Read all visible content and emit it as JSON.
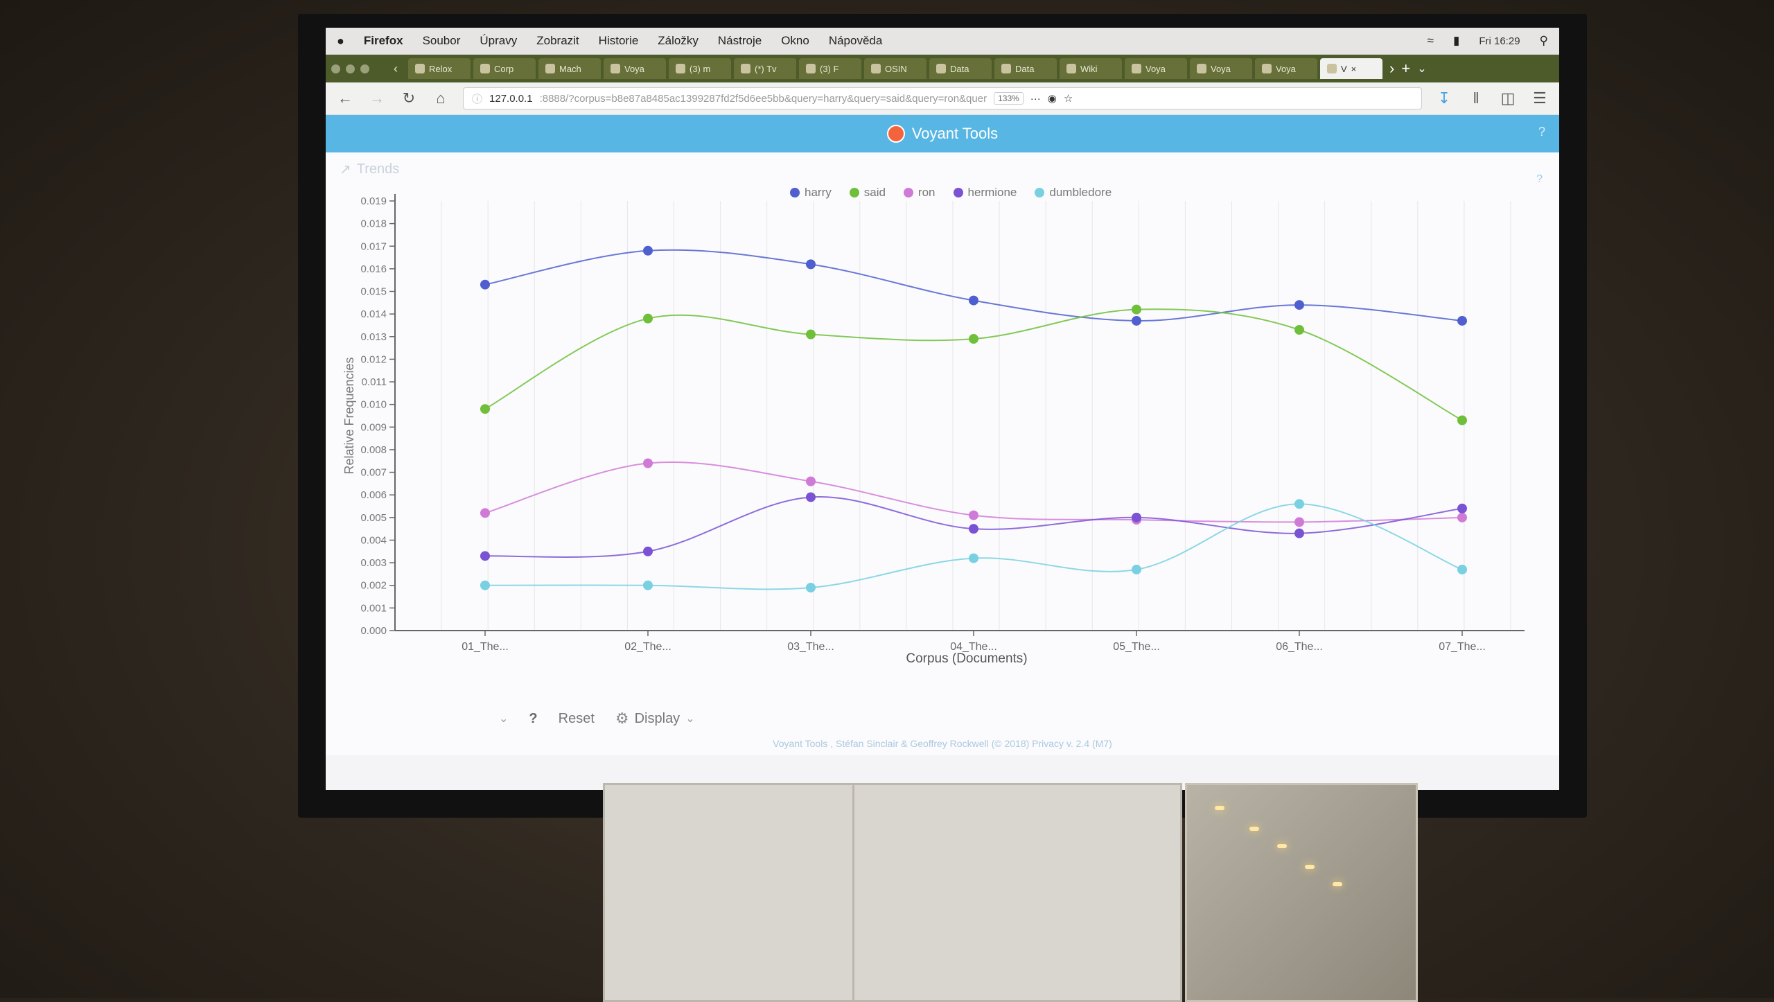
{
  "menubar": {
    "apple": "",
    "app_name": "Firefox",
    "items": [
      "Soubor",
      "Úpravy",
      "Zobrazit",
      "Historie",
      "Záložky",
      "Nástroje",
      "Okno",
      "Nápověda"
    ],
    "clock": "Fri 16:29"
  },
  "tabs": [
    {
      "label": "Relox",
      "active": false
    },
    {
      "label": "Corp",
      "active": false
    },
    {
      "label": "Mach",
      "active": false
    },
    {
      "label": "Voya",
      "active": false
    },
    {
      "label": "(3) m",
      "active": false
    },
    {
      "label": "(*) Tv",
      "active": false
    },
    {
      "label": "(3) F",
      "active": false
    },
    {
      "label": "OSIN",
      "active": false
    },
    {
      "label": "Data",
      "active": false
    },
    {
      "label": "Data",
      "active": false
    },
    {
      "label": "Wiki",
      "active": false
    },
    {
      "label": "Voya",
      "active": false
    },
    {
      "label": "Voya",
      "active": false
    },
    {
      "label": "Voya",
      "active": false
    },
    {
      "label": "V",
      "active": true
    }
  ],
  "navbar": {
    "url_host": "127.0.0.1",
    "url_rest": ":8888/?corpus=b8e87a8485ac1399287fd2f5d6ee5bb&query=harry&query=said&query=ron&quer",
    "zoom": "133%",
    "more": "···"
  },
  "app": {
    "title": "Voyant Tools",
    "help": "?"
  },
  "panel": {
    "title": "Trends",
    "help": "?"
  },
  "toolbar": {
    "help": "?",
    "reset": "Reset",
    "display": "Display"
  },
  "credits": "Voyant Tools , Stéfan Sinclair & Geoffrey Rockwell (© 2018) Privacy v. 2.4 (M7)",
  "chart_data": {
    "type": "line",
    "xlabel": "Corpus (Documents)",
    "ylabel": "Relative Frequencies",
    "ylim": [
      0,
      0.019
    ],
    "yticks": [
      "0.000",
      "0.001",
      "0.002",
      "0.003",
      "0.004",
      "0.005",
      "0.006",
      "0.007",
      "0.008",
      "0.009",
      "0.010",
      "0.011",
      "0.012",
      "0.013",
      "0.014",
      "0.015",
      "0.016",
      "0.017",
      "0.018",
      "0.019"
    ],
    "categories": [
      "01_The...",
      "02_The...",
      "03_The...",
      "04_The...",
      "05_The...",
      "06_The...",
      "07_The..."
    ],
    "grid": true,
    "legend_position": "top",
    "series": [
      {
        "name": "harry",
        "color": "#4f5fd0",
        "values": [
          0.0153,
          0.0168,
          0.0162,
          0.0146,
          0.0137,
          0.0144,
          0.0137
        ]
      },
      {
        "name": "said",
        "color": "#6fbf3a",
        "values": [
          0.0098,
          0.0138,
          0.0131,
          0.0129,
          0.0142,
          0.0133,
          0.0093
        ]
      },
      {
        "name": "ron",
        "color": "#d07ad8",
        "values": [
          0.0052,
          0.0074,
          0.0066,
          0.0051,
          0.0049,
          0.0048,
          0.005
        ]
      },
      {
        "name": "hermione",
        "color": "#7a52d4",
        "values": [
          0.0033,
          0.0035,
          0.0059,
          0.0045,
          0.005,
          0.0043,
          0.0054
        ]
      },
      {
        "name": "dumbledore",
        "color": "#78d0e0",
        "values": [
          0.002,
          0.002,
          0.0019,
          0.0032,
          0.0027,
          0.0056,
          0.0027
        ]
      }
    ]
  }
}
